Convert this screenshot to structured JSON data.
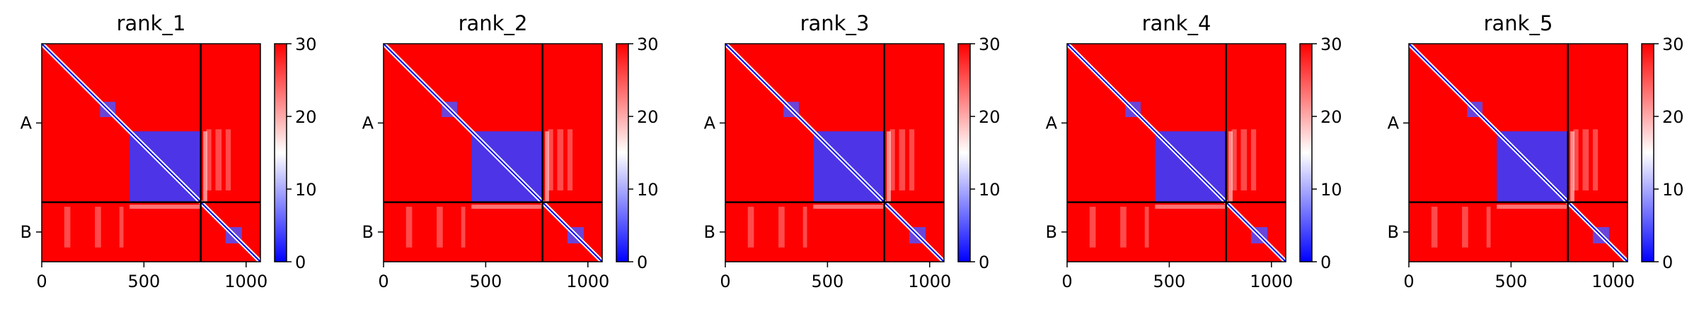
{
  "chart_data": [
    {
      "type": "heatmap",
      "title": "rank_1",
      "x_ticks": [
        0,
        500,
        1000
      ],
      "xlim": [
        0,
        1070
      ],
      "y_tick_labels": [
        "A",
        "B"
      ],
      "chain_boundary": 778,
      "colorbar": {
        "ticks": [
          0,
          10,
          20,
          30
        ],
        "range": [
          0,
          30
        ],
        "colormap": [
          "#0000ff",
          "#ffffff",
          "#ff0000"
        ]
      }
    },
    {
      "type": "heatmap",
      "title": "rank_2",
      "x_ticks": [
        0,
        500,
        1000
      ],
      "xlim": [
        0,
        1070
      ],
      "y_tick_labels": [
        "A",
        "B"
      ],
      "chain_boundary": 778,
      "colorbar": {
        "ticks": [
          0,
          10,
          20,
          30
        ],
        "range": [
          0,
          30
        ],
        "colormap": [
          "#0000ff",
          "#ffffff",
          "#ff0000"
        ]
      }
    },
    {
      "type": "heatmap",
      "title": "rank_3",
      "x_ticks": [
        0,
        500,
        1000
      ],
      "xlim": [
        0,
        1070
      ],
      "y_tick_labels": [
        "A",
        "B"
      ],
      "chain_boundary": 778,
      "colorbar": {
        "ticks": [
          0,
          10,
          20,
          30
        ],
        "range": [
          0,
          30
        ],
        "colormap": [
          "#0000ff",
          "#ffffff",
          "#ff0000"
        ]
      }
    },
    {
      "type": "heatmap",
      "title": "rank_4",
      "x_ticks": [
        0,
        500,
        1000
      ],
      "xlim": [
        0,
        1070
      ],
      "y_tick_labels": [
        "A",
        "B"
      ],
      "chain_boundary": 778,
      "colorbar": {
        "ticks": [
          0,
          10,
          20,
          30
        ],
        "range": [
          0,
          30
        ],
        "colormap": [
          "#0000ff",
          "#ffffff",
          "#ff0000"
        ]
      }
    },
    {
      "type": "heatmap",
      "title": "rank_5",
      "x_ticks": [
        0,
        500,
        1000
      ],
      "xlim": [
        0,
        1070
      ],
      "y_tick_labels": [
        "A",
        "B"
      ],
      "chain_boundary": 778,
      "colorbar": {
        "ticks": [
          0,
          10,
          20,
          30
        ],
        "range": [
          0,
          30
        ],
        "colormap": [
          "#0000ff",
          "#ffffff",
          "#ff0000"
        ]
      }
    }
  ]
}
